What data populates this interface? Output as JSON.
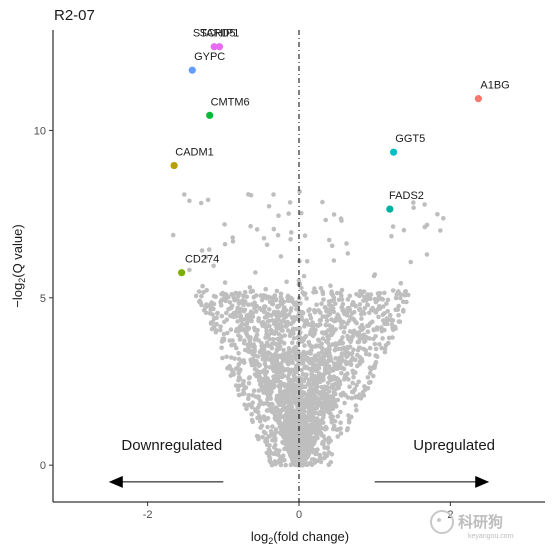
{
  "chart_data": {
    "type": "scatter",
    "title": "R2-07",
    "xlabel": "log2(fold change)",
    "xlabel_main": "log",
    "xlabel_sub": "2",
    "xlabel_rest": "(fold change)",
    "ylabel_prefix": "−log",
    "ylabel_sub": "2",
    "ylabel_rest": "(Q value)",
    "xlim": [
      -3.25,
      3.25
    ],
    "ylim": [
      -1.1,
      13.0
    ],
    "x_ticks": [
      {
        "v": -2,
        "label": "-2"
      },
      {
        "v": 0,
        "label": "0"
      },
      {
        "v": 2,
        "label": "2"
      }
    ],
    "y_ticks": [
      {
        "v": 0,
        "label": "0"
      },
      {
        "v": 5,
        "label": "5"
      },
      {
        "v": 10,
        "label": "10"
      }
    ],
    "grid": false,
    "reference_line_x": 0,
    "annotations": {
      "down": {
        "text": "Downregulated",
        "x": -1.68,
        "y": 0.45
      },
      "up": {
        "text": "Upregulated",
        "x": 2.05,
        "y": 0.45
      },
      "down_arrow": {
        "from": -1.0,
        "to": -2.5,
        "y": -0.5
      },
      "up_arrow": {
        "from": 1.0,
        "to": 2.5,
        "y": -0.5
      }
    },
    "labeled_genes": [
      {
        "name": "STARD5",
        "x": -1.12,
        "y": 12.5,
        "color": "#E76BF3",
        "lx": -1.12,
        "ly": 12.8
      },
      {
        "name": "SCHIP1",
        "x": -1.05,
        "y": 12.5,
        "color": "#E76BF3",
        "lx": -1.05,
        "ly": 12.8
      },
      {
        "name": "GYPC",
        "x": -1.41,
        "y": 11.8,
        "color": "#619CFF",
        "lx": -1.18,
        "ly": 12.1
      },
      {
        "name": "CMTM6",
        "x": -1.18,
        "y": 10.45,
        "color": "#00BA38",
        "lx": -0.91,
        "ly": 10.75
      },
      {
        "name": "CADM1",
        "x": -1.65,
        "y": 8.95,
        "color": "#B79F00",
        "lx": -1.38,
        "ly": 9.25
      },
      {
        "name": "CD274",
        "x": -1.55,
        "y": 5.75,
        "color": "#7CAE00",
        "lx": -1.28,
        "ly": 6.05
      },
      {
        "name": "A1BG",
        "x": 2.37,
        "y": 10.95,
        "color": "#F8766D",
        "lx": 2.59,
        "ly": 11.25
      },
      {
        "name": "GGT5",
        "x": 1.25,
        "y": 9.35,
        "color": "#00BFC4",
        "lx": 1.47,
        "ly": 9.65
      },
      {
        "name": "FADS2",
        "x": 1.2,
        "y": 7.65,
        "color": "#00B0A0",
        "lx": 1.42,
        "ly": 7.95
      }
    ],
    "background_points": {
      "color": "#BEBEBE",
      "description": "thousands of non-significant genes forming a V shape centered at x=0"
    }
  },
  "watermark": {
    "text": "科研狗",
    "sub": "keyangou.com"
  }
}
